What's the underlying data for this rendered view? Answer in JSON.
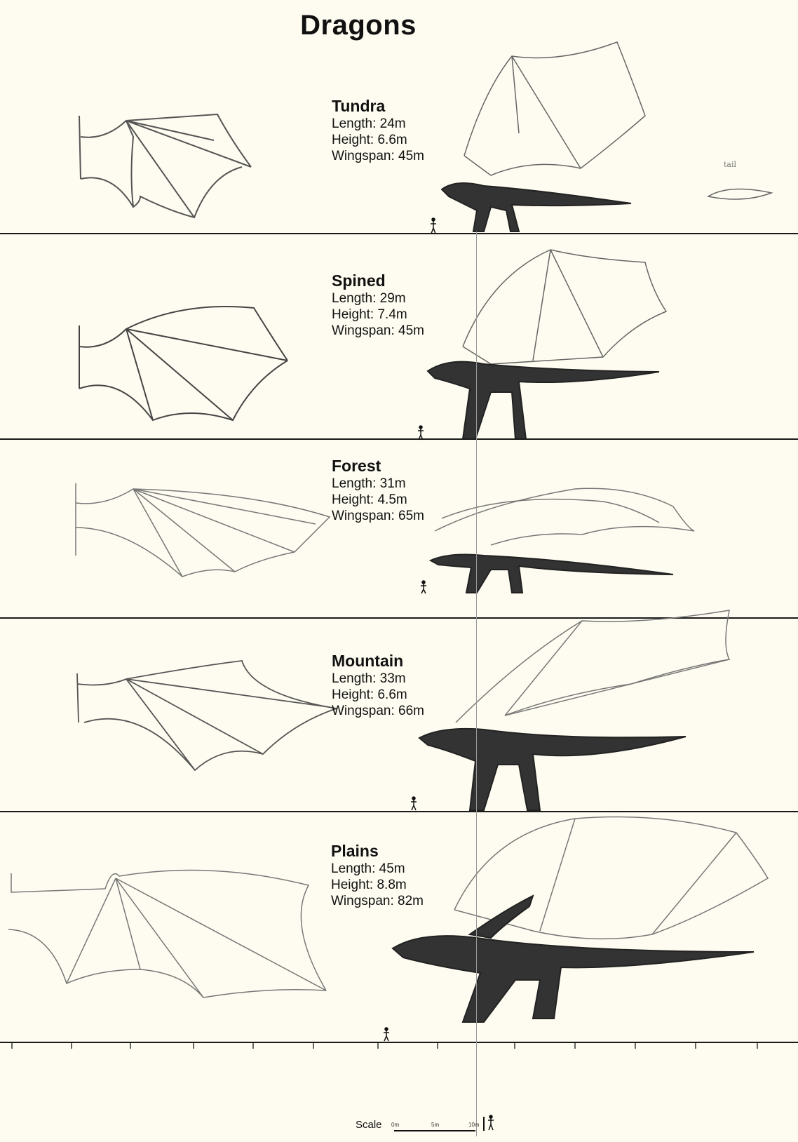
{
  "title": "Dragons",
  "dragons": [
    {
      "name": "Tundra",
      "length": "Length: 24m",
      "height": "Height: 6.6m",
      "wingspan": "Wingspan: 45m"
    },
    {
      "name": "Spined",
      "length": "Length: 29m",
      "height": "Height: 7.4m",
      "wingspan": "Wingspan: 45m"
    },
    {
      "name": "Forest",
      "length": "Length: 31m",
      "height": "Height: 4.5m",
      "wingspan": "Wingspan: 65m"
    },
    {
      "name": "Mountain",
      "length": "Length: 33m",
      "height": "Height: 6.6m",
      "wingspan": "Wingspan: 66m"
    },
    {
      "name": "Plains",
      "length": "Length: 45m",
      "height": "Height: 8.8m",
      "wingspan": "Wingspan: 82m"
    }
  ],
  "tail_note": "tail",
  "scale": {
    "label": "Scale",
    "ticks": [
      "0m",
      "5m",
      "10m"
    ]
  },
  "colors": {
    "background": "#fefcf0",
    "line": "#1a1a1a",
    "sketch": "#555555"
  }
}
